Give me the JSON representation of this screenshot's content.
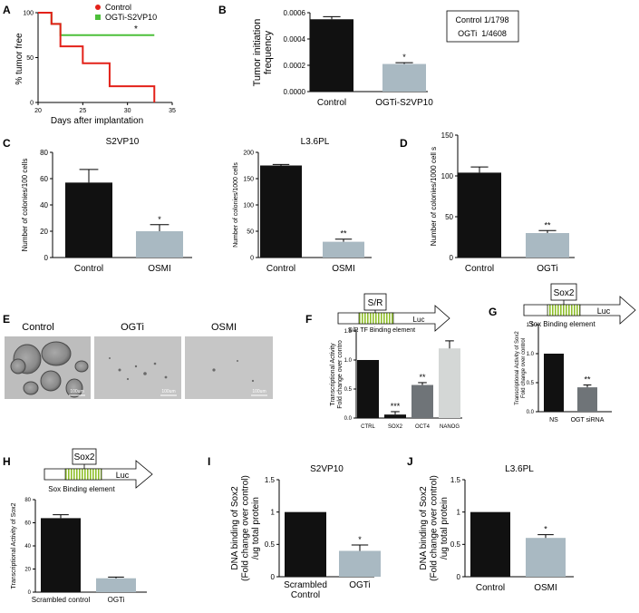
{
  "panel_letters": [
    "A",
    "B",
    "C",
    "D",
    "E",
    "F",
    "G",
    "H",
    "I",
    "J"
  ],
  "colors": {
    "red": "#e32119",
    "green": "#4dbf3a",
    "black": "#111111",
    "grey_blue": "#a9b9c2",
    "bar_grey": "#6f7478",
    "nanog": "#d4d7d6",
    "stripe": "#8fbf2a"
  },
  "chart_data": [
    {
      "id": "A",
      "type": "line",
      "xlabel": "Days after implantation",
      "ylabel": "% tumor free",
      "xlim": [
        20,
        35
      ],
      "ylim": [
        0,
        100
      ],
      "xticks": [
        "20",
        "25",
        "30",
        "35"
      ],
      "yticks": [
        "0",
        "50",
        "100"
      ],
      "series": [
        {
          "name": "Control",
          "color": "#e32119",
          "marker": "circle",
          "steps": [
            [
              20,
              100
            ],
            [
              21.5,
              100
            ],
            [
              21.5,
              87.5
            ],
            [
              22.5,
              87.5
            ],
            [
              22.5,
              62.5
            ],
            [
              25,
              62.5
            ],
            [
              25,
              43.75
            ],
            [
              28,
              43.75
            ],
            [
              28,
              18
            ],
            [
              33,
              18
            ],
            [
              33,
              0
            ]
          ]
        },
        {
          "name": "OGTi-S2VP10",
          "color": "#4dbf3a",
          "marker": "square",
          "steps": [
            [
              20,
              100
            ],
            [
              21.5,
              100
            ],
            [
              21.5,
              87.5
            ],
            [
              22.5,
              87.5
            ],
            [
              22.5,
              75
            ],
            [
              33,
              75
            ]
          ]
        }
      ],
      "annotation": "*"
    },
    {
      "id": "B",
      "type": "bar",
      "ylabel": "Tumor initiation frequency",
      "categories": [
        "Control",
        "OGTi-S2VP10"
      ],
      "values": [
        0.00055,
        0.00021
      ],
      "errors": [
        2e-05,
        1e-05
      ],
      "ylim": [
        0,
        0.0006
      ],
      "yticks": [
        "0.0000",
        "0.0002",
        "0.0004",
        "0.0006"
      ],
      "sig": [
        "",
        "*"
      ],
      "box_lines": [
        "Control 1/1798",
        "OGTi  1/4608"
      ]
    },
    {
      "id": "C1",
      "type": "bar",
      "title": "S2VP10",
      "ylabel": "Number of colonies/100 cells",
      "categories": [
        "Control",
        "OSMI"
      ],
      "values": [
        57,
        20
      ],
      "errors": [
        10,
        5
      ],
      "ylim": [
        0,
        80
      ],
      "yticks": [
        "0",
        "20",
        "40",
        "60",
        "80"
      ],
      "sig": [
        "",
        "*"
      ]
    },
    {
      "id": "C2",
      "type": "bar",
      "title": "L3.6PL",
      "ylabel": "Number of colonies/1000 cells",
      "categories": [
        "Control",
        "OSMI"
      ],
      "values": [
        175,
        30
      ],
      "errors": [
        2,
        5
      ],
      "ylim": [
        0,
        200
      ],
      "yticks": [
        "0",
        "50",
        "100",
        "150",
        "200"
      ],
      "sig": [
        "",
        "**"
      ]
    },
    {
      "id": "D",
      "type": "bar",
      "ylabel": "Number of colonies/1000 cell s",
      "categories": [
        "Control",
        "OGTi"
      ],
      "values": [
        104,
        30
      ],
      "errors": [
        7,
        3
      ],
      "ylim": [
        0,
        150
      ],
      "yticks": [
        "0",
        "50",
        "100",
        "150"
      ],
      "sig": [
        "",
        "**"
      ]
    },
    {
      "id": "F",
      "type": "bar",
      "ylabel": [
        "Transcriptional Activity",
        "Fold change over contro"
      ],
      "categories": [
        "CTRL",
        "SOX2",
        "OCT4",
        "NANOG"
      ],
      "values": [
        1.0,
        0.06,
        0.57,
        1.2
      ],
      "errors": [
        0,
        0.05,
        0.04,
        0.13
      ],
      "ylim": [
        0,
        1.5
      ],
      "yticks": [
        "0.0",
        "0.5",
        "1.0",
        "1.5"
      ],
      "sig": [
        "",
        "***",
        "**",
        ""
      ]
    },
    {
      "id": "G",
      "type": "bar",
      "ylabel": [
        "Transcriptional Activity of Sox2",
        "Fold change over control"
      ],
      "categories": [
        "NS",
        "OGT siRNA"
      ],
      "values": [
        1.0,
        0.42
      ],
      "errors": [
        0,
        0.04
      ],
      "ylim": [
        0,
        1.5
      ],
      "yticks": [
        "0.0",
        "0.5",
        "1.0",
        "1.5"
      ],
      "sig": [
        "",
        "**"
      ]
    },
    {
      "id": "H",
      "type": "bar",
      "ylabel": "Transcriptional Activity of Sox2",
      "categories": [
        "Scrambled control",
        "OGTi"
      ],
      "values": [
        64,
        12
      ],
      "errors": [
        3,
        1
      ],
      "ylim": [
        0,
        80
      ],
      "yticks": [
        "0",
        "20",
        "40",
        "60",
        "80"
      ],
      "sig": [
        "",
        ""
      ]
    },
    {
      "id": "I",
      "type": "bar",
      "title": "S2VP10",
      "ylabel": [
        "DNA binding of Sox2",
        "(Fold change over control)",
        "/ug total protein"
      ],
      "categories": [
        [
          "Scrambled",
          "Control"
        ],
        [
          "OGTi"
        ]
      ],
      "values": [
        1.0,
        0.4
      ],
      "errors": [
        0,
        0.09
      ],
      "ylim": [
        0,
        1.5
      ],
      "yticks": [
        "0",
        "0.5",
        "1",
        "1.5"
      ],
      "sig": [
        "",
        "*"
      ]
    },
    {
      "id": "J",
      "type": "bar",
      "title": "L3.6PL",
      "ylabel": [
        "DNA binding of Sox2",
        "(Fold change over control)",
        "/ug total protein"
      ],
      "categories": [
        "Control",
        "OSMI"
      ],
      "values": [
        1.0,
        0.6
      ],
      "errors": [
        0,
        0.05
      ],
      "ylim": [
        0,
        1.5
      ],
      "yticks": [
        "0",
        "0.5",
        "1",
        "1.5"
      ],
      "sig": [
        "",
        "*"
      ]
    }
  ],
  "panelE": {
    "labels": [
      "Control",
      "OGTi",
      "OSMI"
    ],
    "scale": "100um"
  },
  "constructs": {
    "F": {
      "box": "S/R",
      "end": "Luc",
      "element": "S/R TF Binding element"
    },
    "G": {
      "box": "Sox2",
      "end": "Luc",
      "element": "Sox Binding element"
    },
    "H": {
      "box": "Sox2",
      "end": "Luc",
      "element": "Sox Binding element"
    }
  }
}
